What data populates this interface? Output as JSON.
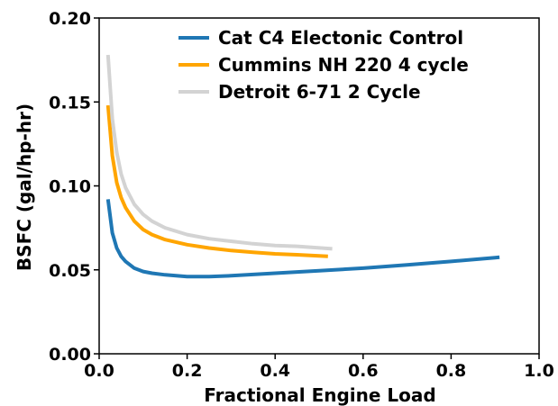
{
  "chart_data": {
    "type": "line",
    "title": "",
    "xlabel": "Fractional Engine Load",
    "ylabel": "BSFC (gal/hp-hr)",
    "xlim": [
      0.0,
      1.0
    ],
    "ylim": [
      0.0,
      0.2
    ],
    "x_ticks": [
      "0.0",
      "0.2",
      "0.4",
      "0.6",
      "0.8",
      "1.0"
    ],
    "y_ticks": [
      "0.00",
      "0.05",
      "0.10",
      "0.15",
      "0.20"
    ],
    "grid": false,
    "legend_position": "top-right",
    "series": [
      {
        "name": "Cat C4 Electonic Control",
        "color": "#1f77b4",
        "x": [
          0.02,
          0.03,
          0.04,
          0.05,
          0.06,
          0.08,
          0.1,
          0.12,
          0.15,
          0.2,
          0.25,
          0.3,
          0.4,
          0.5,
          0.6,
          0.7,
          0.8,
          0.9,
          0.91
        ],
        "y": [
          0.092,
          0.072,
          0.063,
          0.058,
          0.055,
          0.051,
          0.049,
          0.048,
          0.047,
          0.046,
          0.046,
          0.0465,
          0.048,
          0.0495,
          0.051,
          0.053,
          0.055,
          0.0572,
          0.0575
        ]
      },
      {
        "name": "Cummins NH 220 4 cycle",
        "color": "#ffa500",
        "x": [
          0.02,
          0.03,
          0.04,
          0.05,
          0.06,
          0.08,
          0.1,
          0.12,
          0.15,
          0.2,
          0.25,
          0.3,
          0.35,
          0.4,
          0.45,
          0.52
        ],
        "y": [
          0.148,
          0.118,
          0.102,
          0.093,
          0.087,
          0.079,
          0.074,
          0.071,
          0.068,
          0.065,
          0.063,
          0.0615,
          0.0605,
          0.0595,
          0.059,
          0.058
        ]
      },
      {
        "name": "Detroit 6-71 2 Cycle",
        "color": "#d3d3d3",
        "x": [
          0.02,
          0.03,
          0.04,
          0.05,
          0.06,
          0.08,
          0.1,
          0.12,
          0.15,
          0.2,
          0.25,
          0.3,
          0.35,
          0.4,
          0.45,
          0.53
        ],
        "y": [
          0.178,
          0.14,
          0.12,
          0.107,
          0.099,
          0.089,
          0.083,
          0.079,
          0.075,
          0.071,
          0.0685,
          0.067,
          0.0655,
          0.0645,
          0.064,
          0.0625
        ]
      }
    ]
  }
}
